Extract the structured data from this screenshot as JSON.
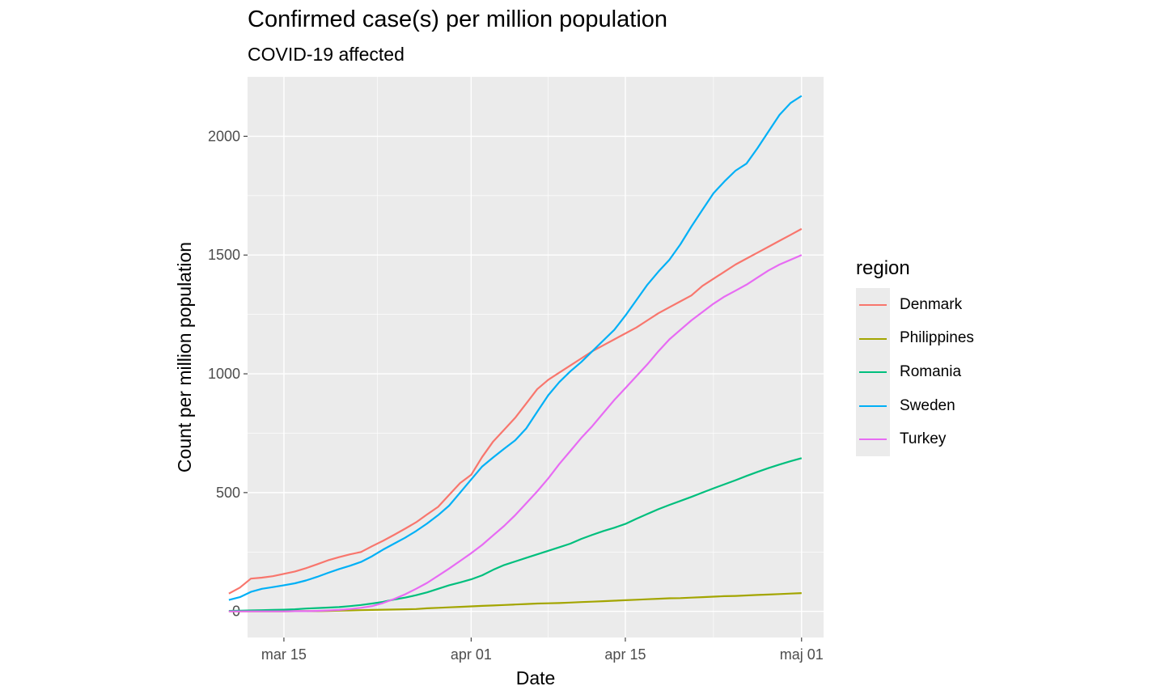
{
  "chart_data": {
    "type": "line",
    "title": "Confirmed case(s) per million population",
    "subtitle": "COVID-19 affected",
    "xlabel": "Date",
    "ylabel": "Count per million population",
    "x_ticks": [
      "mar 15",
      "apr 01",
      "apr 15",
      "maj 01"
    ],
    "x_ticks_day": [
      0,
      17,
      31,
      47
    ],
    "y_ticks": [
      0,
      500,
      1000,
      1500,
      2000
    ],
    "xlim_day": [
      -3.3,
      49.0
    ],
    "ylim": [
      -110,
      2250
    ],
    "grid": true,
    "legend_title": "region",
    "legend_position": "right",
    "series": [
      {
        "name": "Denmark",
        "color": "#F8766D",
        "x_day": [
          -5,
          -4,
          -3,
          -2,
          -1,
          0,
          1,
          2,
          3,
          4,
          5,
          6,
          7,
          8,
          9,
          10,
          11,
          12,
          13,
          14,
          15,
          16,
          17,
          18,
          19,
          20,
          21,
          22,
          23,
          24,
          25,
          26,
          27,
          28,
          29,
          30,
          31,
          32,
          33,
          34,
          35,
          36,
          37,
          38,
          39,
          40,
          41,
          42,
          43,
          44,
          45,
          46,
          47
        ],
        "values": [
          75,
          100,
          138,
          142,
          148,
          158,
          168,
          182,
          198,
          215,
          228,
          240,
          250,
          274,
          297,
          322,
          348,
          375,
          408,
          440,
          490,
          540,
          575,
          650,
          715,
          765,
          815,
          875,
          935,
          975,
          1005,
          1035,
          1065,
          1095,
          1120,
          1145,
          1170,
          1195,
          1225,
          1255,
          1280,
          1305,
          1330,
          1370,
          1400,
          1430,
          1460,
          1485,
          1510,
          1535,
          1560,
          1585,
          1610
        ]
      },
      {
        "name": "Philippines",
        "color": "#A3A500",
        "x_day": [
          -5,
          -4,
          -3,
          -2,
          -1,
          0,
          1,
          2,
          3,
          4,
          5,
          6,
          7,
          8,
          9,
          10,
          11,
          12,
          13,
          14,
          15,
          16,
          17,
          18,
          19,
          20,
          21,
          22,
          23,
          24,
          25,
          26,
          27,
          28,
          29,
          30,
          31,
          32,
          33,
          34,
          35,
          36,
          37,
          38,
          39,
          40,
          41,
          42,
          43,
          44,
          45,
          46,
          47
        ],
        "values": [
          0,
          0,
          0,
          0,
          0,
          0,
          1,
          1,
          1,
          2,
          3,
          4,
          5,
          6,
          7,
          8,
          9,
          10,
          13,
          15,
          17,
          19,
          21,
          23,
          25,
          27,
          29,
          31,
          33,
          34,
          35,
          37,
          39,
          41,
          43,
          45,
          47,
          49,
          51,
          53,
          55,
          56,
          58,
          60,
          62,
          64,
          65,
          67,
          69,
          71,
          73,
          75,
          77
        ]
      },
      {
        "name": "Romania",
        "color": "#00BF7D",
        "x_day": [
          -5,
          -4,
          -3,
          -2,
          -1,
          0,
          1,
          2,
          3,
          4,
          5,
          6,
          7,
          8,
          9,
          10,
          11,
          12,
          13,
          14,
          15,
          16,
          17,
          18,
          19,
          20,
          21,
          22,
          23,
          24,
          25,
          26,
          27,
          28,
          29,
          30,
          31,
          32,
          33,
          34,
          35,
          36,
          37,
          38,
          39,
          40,
          41,
          42,
          43,
          44,
          45,
          46,
          47
        ],
        "values": [
          2,
          3,
          4,
          5,
          6,
          7,
          9,
          12,
          14,
          16,
          18,
          22,
          27,
          33,
          40,
          50,
          58,
          68,
          80,
          95,
          110,
          122,
          135,
          152,
          175,
          195,
          210,
          225,
          240,
          255,
          270,
          285,
          305,
          322,
          338,
          352,
          368,
          390,
          410,
          430,
          448,
          465,
          482,
          500,
          518,
          535,
          552,
          570,
          587,
          603,
          618,
          632,
          645
        ]
      },
      {
        "name": "Sweden",
        "color": "#00B0F6",
        "x_day": [
          -5,
          -4,
          -3,
          -2,
          -1,
          0,
          1,
          2,
          3,
          4,
          5,
          6,
          7,
          8,
          9,
          10,
          11,
          12,
          13,
          14,
          15,
          16,
          17,
          18,
          19,
          20,
          21,
          22,
          23,
          24,
          25,
          26,
          27,
          28,
          29,
          30,
          31,
          32,
          33,
          34,
          35,
          36,
          37,
          38,
          39,
          40,
          41,
          42,
          43,
          44,
          45,
          46,
          47
        ],
        "values": [
          48,
          60,
          82,
          95,
          102,
          110,
          118,
          130,
          145,
          162,
          178,
          192,
          208,
          232,
          260,
          285,
          310,
          338,
          370,
          405,
          445,
          500,
          555,
          610,
          648,
          685,
          720,
          770,
          840,
          910,
          965,
          1010,
          1050,
          1095,
          1140,
          1185,
          1245,
          1310,
          1375,
          1430,
          1480,
          1545,
          1620,
          1690,
          1760,
          1810,
          1855,
          1885,
          1950,
          2020,
          2090,
          2140,
          2170
        ]
      },
      {
        "name": "Turkey",
        "color": "#E76BF3",
        "x_day": [
          -5,
          -4,
          -3,
          -2,
          -1,
          0,
          1,
          2,
          3,
          4,
          5,
          6,
          7,
          8,
          9,
          10,
          11,
          12,
          13,
          14,
          15,
          16,
          17,
          18,
          19,
          20,
          21,
          22,
          23,
          24,
          25,
          26,
          27,
          28,
          29,
          30,
          31,
          32,
          33,
          34,
          35,
          36,
          37,
          38,
          39,
          40,
          41,
          42,
          43,
          44,
          45,
          46,
          47
        ],
        "values": [
          0,
          0,
          0,
          0,
          0,
          0,
          1,
          1,
          2,
          4,
          6,
          10,
          15,
          22,
          35,
          52,
          72,
          95,
          120,
          150,
          180,
          212,
          245,
          280,
          320,
          360,
          405,
          455,
          505,
          560,
          620,
          675,
          730,
          780,
          835,
          890,
          940,
          990,
          1040,
          1095,
          1145,
          1185,
          1225,
          1260,
          1295,
          1325,
          1350,
          1375,
          1405,
          1435,
          1460,
          1480,
          1500
        ]
      }
    ]
  }
}
